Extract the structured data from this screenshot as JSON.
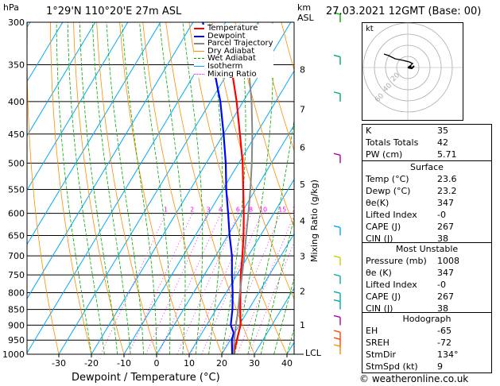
{
  "header": {
    "hpa_label": "hPa",
    "location": "1°29'N  110°20'E  27m  ASL",
    "km_label": "km",
    "asl_label": "ASL",
    "datetime": "27.03.2021  12GMT  (Base: 00)"
  },
  "axes": {
    "x_title": "Dewpoint / Temperature (°C)",
    "y_right_title": "Mixing Ratio (g/kg)",
    "lcl_label": "LCL"
  },
  "legend": [
    {
      "name": "Temperature",
      "color": "#ff0000"
    },
    {
      "name": "Dewpoint",
      "color": "#0000ff"
    },
    {
      "name": "Parcel Trajectory",
      "color": "#888888"
    },
    {
      "name": "Dry Adiabat",
      "color": "#ff8c00"
    },
    {
      "name": "Wet Adiabat",
      "color": "#00aa00"
    },
    {
      "name": "Isotherm",
      "color": "#00aaff"
    },
    {
      "name": "Mixing Ratio",
      "color": "#ff00ff"
    }
  ],
  "indices": {
    "rows": [
      {
        "label": "K",
        "value": "35"
      },
      {
        "label": "Totals Totals",
        "value": "42"
      },
      {
        "label": "PW (cm)",
        "value": "5.71"
      }
    ]
  },
  "surface": {
    "title": "Surface",
    "rows": [
      {
        "label": "Temp (°C)",
        "value": "23.6"
      },
      {
        "label": "Dewp (°C)",
        "value": "23.2"
      },
      {
        "label": "θe(K)",
        "value": "347"
      },
      {
        "label": "Lifted Index",
        "value": "-0"
      },
      {
        "label": "CAPE (J)",
        "value": "267"
      },
      {
        "label": "CIN (J)",
        "value": "38"
      }
    ]
  },
  "most_unstable": {
    "title": "Most Unstable",
    "rows": [
      {
        "label": "Pressure (mb)",
        "value": "1008"
      },
      {
        "label": "θe (K)",
        "value": "347"
      },
      {
        "label": "Lifted Index",
        "value": "-0"
      },
      {
        "label": "CAPE (J)",
        "value": "267"
      },
      {
        "label": "CIN (J)",
        "value": "38"
      }
    ]
  },
  "hodograph": {
    "title": "Hodograph",
    "kt_label": "kt",
    "ring_labels": [
      "20",
      "40",
      "60"
    ],
    "rows": [
      {
        "label": "EH",
        "value": "-65"
      },
      {
        "label": "SREH",
        "value": "-72"
      },
      {
        "label": "StmDir",
        "value": "134°"
      },
      {
        "label": "StmSpd (kt)",
        "value": "9"
      }
    ]
  },
  "footer": {
    "credit": "© weatheronline.co.uk"
  },
  "chart_data": {
    "type": "line",
    "title": "1°29'N  110°20'E  27m  ASL",
    "xlabel": "Dewpoint / Temperature (°C)",
    "ylabel": "hPa",
    "xlim": [
      -40,
      40
    ],
    "ylim": [
      1000,
      300
    ],
    "x_ticks": [
      -30,
      -20,
      -10,
      0,
      10,
      20,
      30,
      40
    ],
    "pressure_levels": [
      300,
      350,
      400,
      450,
      500,
      550,
      600,
      650,
      700,
      750,
      800,
      850,
      900,
      950,
      1000
    ],
    "km_ticks": [
      {
        "label": "8",
        "p": 356
      },
      {
        "label": "7",
        "p": 411
      },
      {
        "label": "6",
        "p": 472
      },
      {
        "label": "5",
        "p": 540
      },
      {
        "label": "4",
        "p": 616
      },
      {
        "label": "3",
        "p": 701
      },
      {
        "label": "2",
        "p": 795
      },
      {
        "label": "1",
        "p": 899
      }
    ],
    "mixing_ratio_labels": [
      "1",
      "2",
      "3",
      "4",
      "6",
      "8",
      "10",
      "15",
      "20",
      "25"
    ],
    "series": [
      {
        "name": "Temperature",
        "color": "#ff0000",
        "p": [
          1000,
          950,
          925,
          900,
          850,
          800,
          750,
          700,
          650,
          600,
          550,
          500,
          450,
          400,
          350
        ],
        "t": [
          23.6,
          22.0,
          21.2,
          20.4,
          17.4,
          14.4,
          11.2,
          8.2,
          4.8,
          0.8,
          -3.8,
          -8.8,
          -15.0,
          -22.0,
          -30.5
        ]
      },
      {
        "name": "Dewpoint",
        "color": "#0000ff",
        "p": [
          1000,
          950,
          925,
          900,
          850,
          800,
          750,
          700,
          650,
          600,
          550,
          500,
          450,
          400,
          350,
          300
        ],
        "t": [
          23.2,
          20.5,
          19.7,
          17.4,
          15.0,
          12.0,
          8.5,
          5.0,
          0.5,
          -4.0,
          -9.0,
          -14.0,
          -20.0,
          -27.0,
          -36.0,
          -47.0
        ]
      },
      {
        "name": "Parcel Trajectory",
        "color": "#888888",
        "p": [
          1000,
          950,
          900,
          850,
          800,
          750,
          700,
          650,
          600,
          550,
          500,
          450,
          400,
          350
        ],
        "t": [
          23.6,
          21.2,
          19.0,
          16.8,
          14.2,
          11.6,
          8.8,
          5.6,
          2.2,
          -1.6,
          -6.0,
          -11.2,
          -17.4,
          -25.2
        ]
      }
    ]
  }
}
